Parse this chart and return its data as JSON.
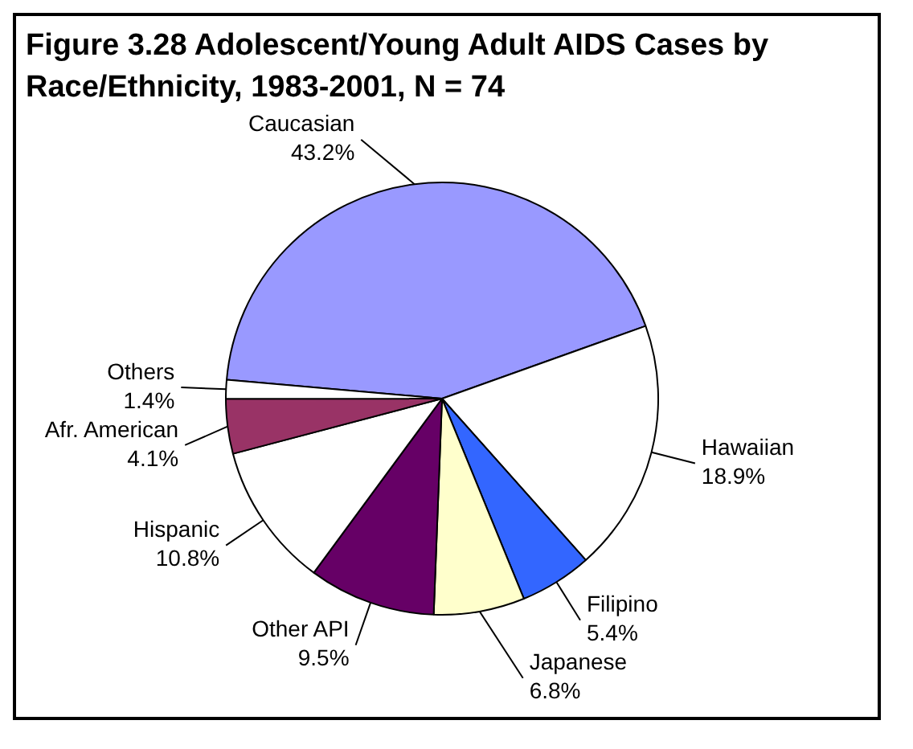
{
  "chart_data": {
    "type": "pie",
    "title": "Figure 3.28 Adolescent/Young Adult AIDS Cases by Race/Ethnicity, 1983-2001, N = 74",
    "categories": [
      "Caucasian",
      "Hawaiian",
      "Filipino",
      "Japanese",
      "Other API",
      "Hispanic",
      "Afr. American",
      "Others"
    ],
    "values": [
      43.2,
      18.9,
      5.4,
      6.8,
      9.5,
      10.8,
      4.1,
      1.4
    ],
    "value_labels": [
      "43.2%",
      "18.9%",
      "5.4%",
      "6.8%",
      "9.5%",
      "10.8%",
      "4.1%",
      "1.4%"
    ],
    "colors": [
      "#9999ff",
      "#ffffff",
      "#3366ff",
      "#ffffcc",
      "#660066",
      "#ffffff",
      "#993366",
      "#ffffff"
    ],
    "legend": false
  }
}
